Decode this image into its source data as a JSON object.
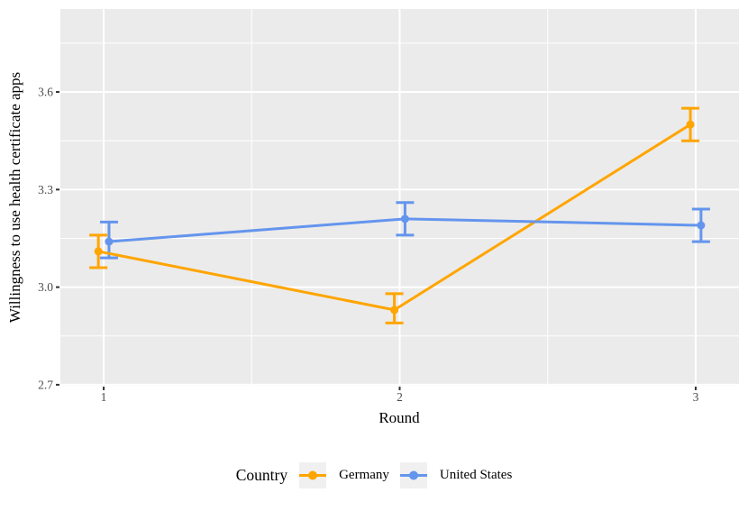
{
  "chart_data": {
    "type": "line",
    "title": "",
    "xlabel": "Round",
    "ylabel": "Willingness to use health certificate apps",
    "x": [
      1,
      2,
      3
    ],
    "x_tick_labels": [
      "1",
      "2",
      "3"
    ],
    "y_ticks": [
      2.7,
      3.0,
      3.3,
      3.6
    ],
    "y_tick_labels": [
      "2.7",
      "3.0",
      "3.3",
      "3.6"
    ],
    "y_minor": [
      2.85,
      3.15,
      3.45,
      3.75
    ],
    "x_minor": [
      1.5,
      2.5
    ],
    "xlim": [
      0.8537,
      3.1463
    ],
    "ylim": [
      2.697,
      3.855
    ],
    "grid": true,
    "legend": {
      "title": "Country",
      "position": "bottom"
    },
    "series": [
      {
        "name": "Germany",
        "color": "#FFA500",
        "values": [
          3.11,
          2.93,
          3.5
        ],
        "ci_low": [
          3.06,
          2.89,
          3.45
        ],
        "ci_high": [
          3.16,
          2.98,
          3.55
        ],
        "dodge": -0.018
      },
      {
        "name": "United States",
        "color": "#6495ED",
        "values": [
          3.14,
          3.21,
          3.19
        ],
        "ci_low": [
          3.09,
          3.16,
          3.14
        ],
        "ci_high": [
          3.2,
          3.26,
          3.24
        ],
        "dodge": 0.018
      }
    ]
  },
  "style": {
    "panel_bg": "#EBEBEB",
    "grid_color": "#FFFFFF",
    "tick_mark_color": "#333333",
    "tick_label_color": "#4D4D4D",
    "axis_title_color": "#000000",
    "legend_key_bg": "#F0F0F0"
  }
}
